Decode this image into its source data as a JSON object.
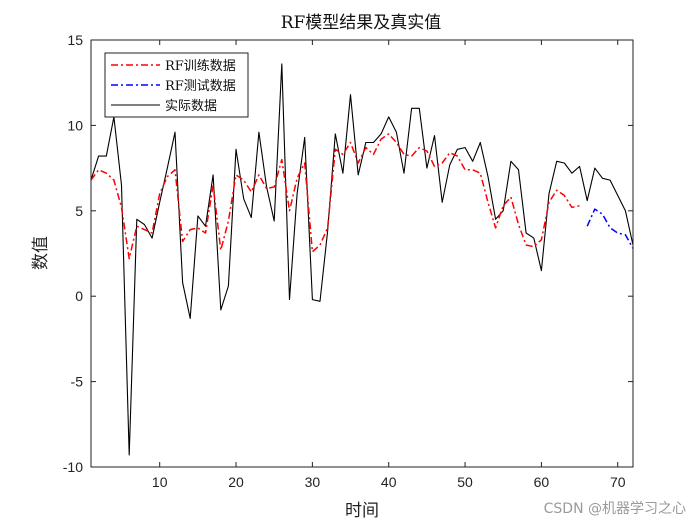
{
  "chart_data": {
    "type": "line",
    "title": "RF模型结果及真实值",
    "xlabel": "时间",
    "ylabel": "数值",
    "xlim": [
      1,
      72
    ],
    "ylim": [
      -10,
      15
    ],
    "xticks": [
      10,
      20,
      30,
      40,
      50,
      60,
      70
    ],
    "yticks": [
      -10,
      -5,
      0,
      5,
      10,
      15
    ],
    "grid": false,
    "legend_position": "top-left",
    "series": [
      {
        "name": "RF训练数据",
        "color": "#ff0000",
        "style": "dash-dot",
        "x": [
          1,
          2,
          3,
          4,
          5,
          6,
          7,
          8,
          9,
          10,
          11,
          12,
          13,
          14,
          15,
          16,
          17,
          18,
          19,
          20,
          21,
          22,
          23,
          24,
          25,
          26,
          27,
          28,
          29,
          30,
          31,
          32,
          33,
          34,
          35,
          36,
          37,
          38,
          39,
          40,
          41,
          42,
          43,
          44,
          45,
          46,
          47,
          48,
          49,
          50,
          51,
          52,
          53,
          54,
          55,
          56,
          57,
          58,
          59,
          60,
          61,
          62,
          63,
          64,
          65
        ],
        "values": [
          6.8,
          7.4,
          7.2,
          6.8,
          5.2,
          2.2,
          4.1,
          3.9,
          3.7,
          6.0,
          7.0,
          7.4,
          3.2,
          3.9,
          4.0,
          3.7,
          6.5,
          2.7,
          4.4,
          7.1,
          6.8,
          6.1,
          7.1,
          6.3,
          6.4,
          8.0,
          5.0,
          6.9,
          7.8,
          2.6,
          3.0,
          4.0,
          8.6,
          8.3,
          9.0,
          7.8,
          8.7,
          8.3,
          9.2,
          9.5,
          9.0,
          8.3,
          8.2,
          8.7,
          8.5,
          7.6,
          7.8,
          8.4,
          8.2,
          7.4,
          7.4,
          7.2,
          5.5,
          4.0,
          5.3,
          5.8,
          4.2,
          3.0,
          2.9,
          3.3,
          5.5,
          6.2,
          5.9,
          5.2,
          5.3
        ]
      },
      {
        "name": "RF测试数据",
        "color": "#0000ff",
        "style": "dash-dot",
        "x": [
          66,
          67,
          68,
          69,
          70,
          71,
          72
        ],
        "values": [
          4.1,
          5.1,
          4.8,
          4.0,
          3.7,
          3.6,
          2.8
        ]
      },
      {
        "name": "实际数据",
        "color": "#000000",
        "style": "solid",
        "x": [
          1,
          2,
          3,
          4,
          5,
          6,
          7,
          8,
          9,
          10,
          11,
          12,
          13,
          14,
          15,
          16,
          17,
          18,
          19,
          20,
          21,
          22,
          23,
          24,
          25,
          26,
          27,
          28,
          29,
          30,
          31,
          32,
          33,
          34,
          35,
          36,
          37,
          38,
          39,
          40,
          41,
          42,
          43,
          44,
          45,
          46,
          47,
          48,
          49,
          50,
          51,
          52,
          53,
          54,
          55,
          56,
          57,
          58,
          59,
          60,
          61,
          62,
          63,
          64,
          65,
          66,
          67,
          68,
          69,
          70,
          71,
          72
        ],
        "values": [
          6.8,
          8.2,
          8.2,
          10.5,
          6.5,
          -9.3,
          4.5,
          4.2,
          3.4,
          5.5,
          7.5,
          9.6,
          0.8,
          -1.3,
          4.7,
          4.1,
          7.1,
          -0.8,
          0.6,
          8.6,
          5.7,
          4.6,
          9.6,
          6.4,
          4.4,
          13.6,
          -0.2,
          6.0,
          9.3,
          -0.2,
          -0.3,
          3.8,
          9.5,
          7.2,
          11.8,
          7.1,
          9.0,
          9.0,
          9.5,
          10.5,
          9.6,
          7.2,
          11.0,
          11.0,
          7.5,
          9.4,
          5.5,
          7.7,
          8.6,
          8.7,
          7.9,
          9.0,
          7.0,
          4.5,
          5.0,
          7.9,
          7.4,
          3.7,
          3.4,
          1.5,
          6.0,
          7.9,
          7.8,
          7.2,
          7.6,
          5.6,
          7.5,
          6.9,
          6.8,
          5.9,
          5.0,
          3.0
        ]
      }
    ]
  },
  "watermark": "CSDN @机器学习之心"
}
